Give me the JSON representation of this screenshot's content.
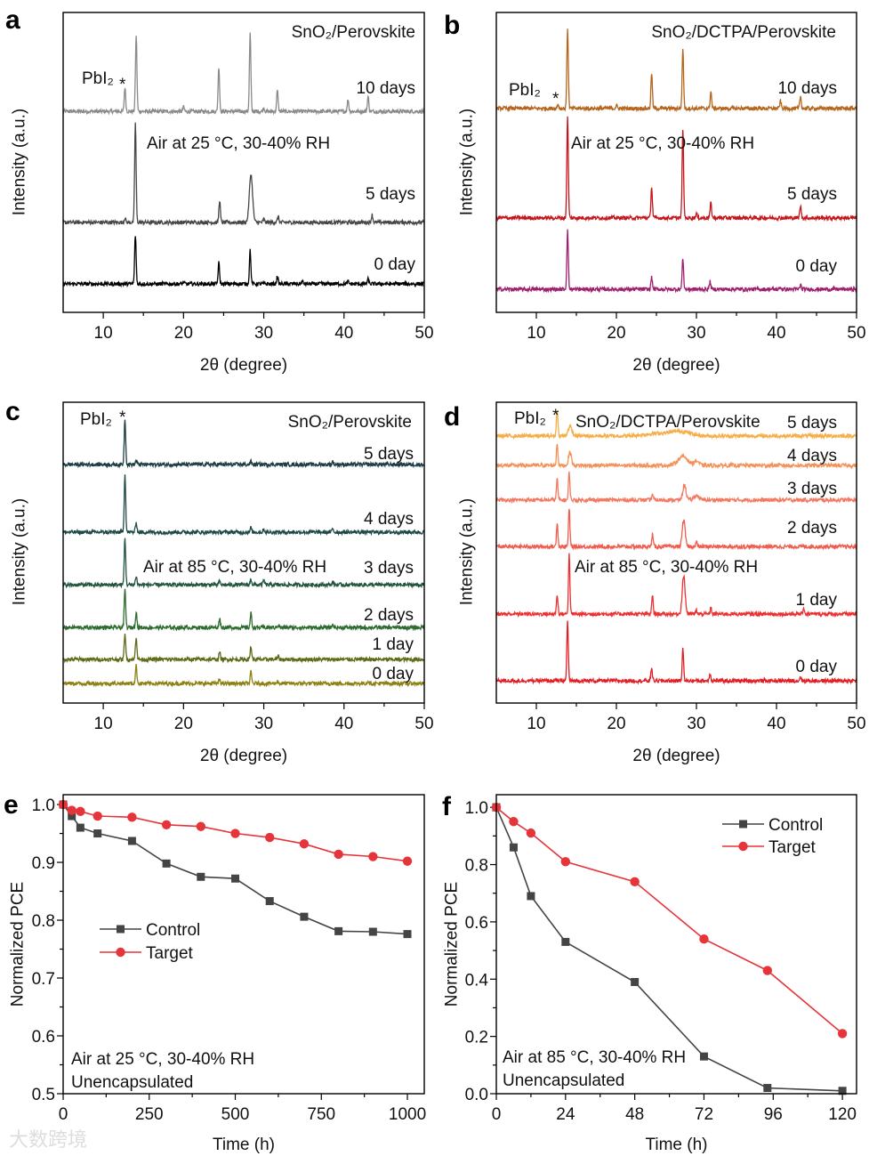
{
  "watermark": "大数跨境",
  "chart_data": [
    {
      "panel": "a",
      "type": "line",
      "title": "SnO₂/Perovskite",
      "condition": "Air at 25 °C, 30-40% RH",
      "pbi2_label": "PbI₂",
      "marker": "*",
      "xlabel": "2θ (degree)",
      "ylabel": "Intensity (a.u.)",
      "xlim": [
        5,
        50
      ],
      "ylim": [
        0,
        100
      ],
      "xticks": [
        "10",
        "20",
        "30",
        "40",
        "50"
      ],
      "series": [
        {
          "name": "10 days",
          "color": "#8a8a8a",
          "offset": 67,
          "peaks": [
            [
              12.7,
              8
            ],
            [
              14.1,
              25.5
            ],
            [
              20,
              1.5
            ],
            [
              24.4,
              15
            ],
            [
              28.3,
              26
            ],
            [
              30,
              1.2
            ],
            [
              31.7,
              7
            ],
            [
              40.5,
              4
            ],
            [
              43,
              5
            ]
          ]
        },
        {
          "name": "5 days",
          "color": "#474747",
          "offset": 30,
          "peaks": [
            [
              12.7,
              1.5
            ],
            [
              14.0,
              33
            ],
            [
              24.5,
              7.4
            ],
            [
              28.4,
              16,
              0.2
            ],
            [
              30,
              1
            ],
            [
              31.8,
              2
            ],
            [
              43.5,
              2.5
            ]
          ]
        },
        {
          "name": "0 day",
          "color": "#000000",
          "offset": 9.5,
          "peaks": [
            [
              14.0,
              16.3
            ],
            [
              20,
              0.6
            ],
            [
              24.4,
              7
            ],
            [
              28.3,
              11.3
            ],
            [
              31.7,
              2.5
            ],
            [
              34.8,
              0.8
            ],
            [
              40.5,
              0.8
            ],
            [
              43,
              1.5
            ]
          ]
        }
      ]
    },
    {
      "panel": "b",
      "type": "line",
      "title": "SnO₂/DCTPA/Perovskite",
      "condition": "Air at 25 °C, 30-40% RH",
      "pbi2_label": "PbI₂",
      "marker": "*",
      "xlabel": "2θ (degree)",
      "ylabel": "Intensity (a.u.)",
      "xlim": [
        5,
        50
      ],
      "ylim": [
        0,
        100
      ],
      "xticks": [
        "10",
        "20",
        "30",
        "40",
        "50"
      ],
      "series": [
        {
          "name": "10 days",
          "color": "#b5651d",
          "offset": 68,
          "peaks": [
            [
              12.7,
              1.5
            ],
            [
              13.9,
              26.7
            ],
            [
              20,
              1
            ],
            [
              24.4,
              11.9
            ],
            [
              28.3,
              20
            ],
            [
              31.8,
              5.6
            ],
            [
              40.5,
              2.5
            ],
            [
              43,
              4
            ]
          ]
        },
        {
          "name": "5 days",
          "color": "#c4161c",
          "offset": 31.5,
          "peaks": [
            [
              13.9,
              33.5
            ],
            [
              24.4,
              10.4
            ],
            [
              28.3,
              29.7
            ],
            [
              30,
              1.5
            ],
            [
              31.8,
              5
            ],
            [
              43,
              4
            ]
          ]
        },
        {
          "name": "0 day",
          "color": "#9e1f6e",
          "offset": 7.7,
          "peaks": [
            [
              13.9,
              19.6
            ],
            [
              24.4,
              4
            ],
            [
              28.3,
              10.4
            ],
            [
              31.7,
              2.5
            ],
            [
              40.5,
              0.7
            ],
            [
              43,
              1.5
            ]
          ]
        }
      ]
    },
    {
      "panel": "c",
      "type": "line",
      "title": "SnO₂/Perovskite",
      "condition": "Air at 85 °C, 30-40% RH",
      "pbi2_label": "PbI₂",
      "marker": "*",
      "xlabel": "2θ (degree)",
      "ylabel": "Intensity (a.u.)",
      "xlim": [
        5,
        50
      ],
      "ylim": [
        0,
        100
      ],
      "xticks": [
        "10",
        "20",
        "30",
        "40",
        "50"
      ],
      "series": [
        {
          "name": "5 days",
          "color": "#1d3d45",
          "offset": 79.3,
          "peaks": [
            [
              12.7,
              15.4
            ],
            [
              14.1,
              1.5
            ],
            [
              28.4,
              1
            ],
            [
              38.6,
              1
            ]
          ]
        },
        {
          "name": "4 days",
          "color": "#1f4a48",
          "offset": 56.8,
          "peaks": [
            [
              12.7,
              19.5
            ],
            [
              14.1,
              3.3
            ],
            [
              28.4,
              1.5
            ],
            [
              30,
              1
            ],
            [
              38.6,
              1.2
            ]
          ]
        },
        {
          "name": "3 days",
          "color": "#22553d",
          "offset": 39.3,
          "peaks": [
            [
              12.7,
              15.7
            ],
            [
              14.1,
              3
            ],
            [
              24.5,
              1.2
            ],
            [
              28.4,
              2
            ],
            [
              30,
              1.5
            ],
            [
              38.6,
              1
            ]
          ]
        },
        {
          "name": "2 days",
          "color": "#2d6b2f",
          "offset": 25.1,
          "peaks": [
            [
              12.7,
              12.7
            ],
            [
              14.1,
              5.3
            ],
            [
              24.5,
              3
            ],
            [
              28.4,
              4.7
            ],
            [
              31.8,
              1
            ],
            [
              38.6,
              1
            ]
          ]
        },
        {
          "name": "1 day",
          "color": "#5e6a17",
          "offset": 14.5,
          "peaks": [
            [
              12.7,
              8.9
            ],
            [
              14.1,
              7.7
            ],
            [
              24.5,
              2.4
            ],
            [
              28.4,
              4.4
            ],
            [
              31.8,
              1
            ]
          ]
        },
        {
          "name": "0 day",
          "color": "#8c8112",
          "offset": 6.5,
          "peaks": [
            [
              14.1,
              5.9
            ],
            [
              24.5,
              1.5
            ],
            [
              28.4,
              3.8
            ],
            [
              31.7,
              0.8
            ],
            [
              43,
              0.8
            ]
          ]
        }
      ]
    },
    {
      "panel": "d",
      "type": "line",
      "title": "SnO₂/DCTPA/Perovskite",
      "condition": "Air at 85 °C, 30-40% RH",
      "pbi2_label": "PbI₂",
      "marker": "*",
      "xlabel": "2θ (degree)",
      "ylabel": "Intensity (a.u.)",
      "xlim": [
        5,
        50
      ],
      "ylim": [
        0,
        100
      ],
      "xticks": [
        "10",
        "20",
        "30",
        "40",
        "50"
      ],
      "series": [
        {
          "name": "5 days",
          "color": "#f5ae48",
          "offset": 88.8,
          "peaks": [
            [
              12.6,
              9
            ],
            [
              14.2,
              3,
              0.25
            ],
            [
              25,
              0.8,
              1.5
            ],
            [
              28,
              1.5,
              1.2
            ]
          ]
        },
        {
          "name": "4 days",
          "color": "#f39158",
          "offset": 79,
          "peaks": [
            [
              12.6,
              7.4
            ],
            [
              14.2,
              4.4,
              0.18
            ],
            [
              28.3,
              3,
              0.6
            ],
            [
              30,
              1.5,
              0.3
            ]
          ]
        },
        {
          "name": "3 days",
          "color": "#f27a62",
          "offset": 67.5,
          "peaks": [
            [
              12.6,
              7
            ],
            [
              14.1,
              9.2
            ],
            [
              24.5,
              2
            ],
            [
              28.5,
              5,
              0.2
            ],
            [
              30,
              1.5,
              0.3
            ]
          ]
        },
        {
          "name": "2 days",
          "color": "#ef5d50",
          "offset": 52,
          "peaks": [
            [
              12.6,
              8
            ],
            [
              14.1,
              12.7
            ],
            [
              24.5,
              4
            ],
            [
              28.4,
              8.9,
              0.18
            ],
            [
              30,
              1.5
            ]
          ]
        },
        {
          "name": "1 day",
          "color": "#ea3232",
          "offset": 29.6,
          "peaks": [
            [
              12.6,
              6.5
            ],
            [
              14.1,
              19.8
            ],
            [
              24.5,
              6.2
            ],
            [
              28.4,
              12.7,
              0.18
            ],
            [
              30,
              1.2
            ],
            [
              31.8,
              2
            ],
            [
              43.4,
              2
            ]
          ]
        },
        {
          "name": "0 day",
          "color": "#e31e24",
          "offset": 7.4,
          "peaks": [
            [
              13.9,
              19.8
            ],
            [
              24.4,
              4.4
            ],
            [
              28.3,
              10.7
            ],
            [
              31.7,
              2.5
            ],
            [
              43,
              1.5
            ]
          ]
        }
      ]
    },
    {
      "panel": "e",
      "type": "line",
      "condition": "Air at 25 °C, 30-40% RH",
      "note": "Unencapsulated",
      "xlabel": "Time (h)",
      "ylabel": "Normalized PCE",
      "xlim": [
        0,
        1049
      ],
      "ylim": [
        0.5,
        1.017
      ],
      "xticks": [
        0,
        250,
        500,
        750,
        1000
      ],
      "yticks": [
        0.5,
        0.6,
        0.7,
        0.8,
        0.9,
        1.0
      ],
      "ytick_labels": [
        "0.5",
        "0.6",
        "0.7",
        "0.8",
        "0.9",
        "1.0"
      ],
      "xtick_labels": [
        "0",
        "250",
        "500",
        "750",
        "1000"
      ],
      "legend_position": "center-left",
      "series": [
        {
          "name": "Control",
          "color": "#444444",
          "marker": "square",
          "x": [
            0,
            25,
            50,
            100,
            200,
            300,
            400,
            500,
            600,
            700,
            800,
            900,
            1000
          ],
          "y": [
            1.0,
            0.98,
            0.96,
            0.95,
            0.937,
            0.898,
            0.875,
            0.872,
            0.833,
            0.806,
            0.781,
            0.78,
            0.776
          ]
        },
        {
          "name": "Target",
          "color": "#e5343a",
          "marker": "circle",
          "x": [
            0,
            25,
            50,
            100,
            200,
            300,
            400,
            500,
            600,
            700,
            800,
            900,
            1000
          ],
          "y": [
            1.0,
            0.99,
            0.988,
            0.98,
            0.978,
            0.965,
            0.962,
            0.95,
            0.943,
            0.932,
            0.914,
            0.91,
            0.902
          ]
        }
      ]
    },
    {
      "panel": "f",
      "type": "line",
      "condition": "Air at 85 °C, 30-40% RH",
      "note": "Unencapsulated",
      "xlabel": "Time (h)",
      "ylabel": "Normalized PCE",
      "xlim": [
        0,
        124.9
      ],
      "ylim": [
        0,
        1.044
      ],
      "xticks": [
        0,
        24,
        48,
        72,
        96,
        120
      ],
      "yticks": [
        0,
        0.2,
        0.4,
        0.6,
        0.8,
        1.0
      ],
      "ytick_labels": [
        "0.0",
        "0.2",
        "0.4",
        "0.6",
        "0.8",
        "1.0"
      ],
      "xtick_labels": [
        "0",
        "24",
        "48",
        "72",
        "96",
        "120"
      ],
      "legend_position": "top-right",
      "series": [
        {
          "name": "Control",
          "color": "#444444",
          "marker": "square",
          "x": [
            0,
            6,
            12,
            24,
            48,
            72,
            94,
            120
          ],
          "y": [
            1.0,
            0.86,
            0.69,
            0.53,
            0.39,
            0.13,
            0.02,
            0.01
          ]
        },
        {
          "name": "Target",
          "color": "#e5343a",
          "marker": "circle",
          "x": [
            0,
            6,
            12,
            24,
            48,
            72,
            94,
            120
          ],
          "y": [
            1.0,
            0.95,
            0.91,
            0.81,
            0.74,
            0.54,
            0.43,
            0.21
          ]
        }
      ]
    }
  ],
  "panel_letters": [
    "a",
    "b",
    "c",
    "d",
    "e",
    "f"
  ]
}
